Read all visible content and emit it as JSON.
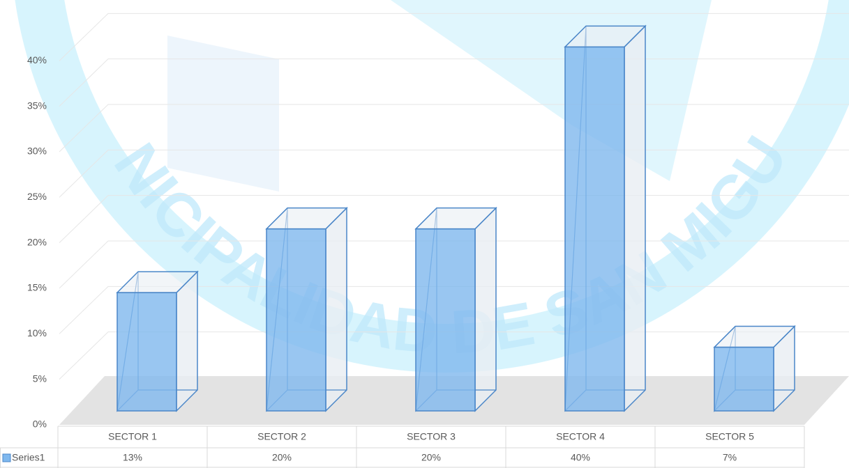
{
  "chart_data": {
    "type": "bar3d",
    "watermark": "MUNICIPALIDAD DE SAN MIGUEL",
    "categories": [
      "SECTOR 1",
      "SECTOR 2",
      "SECTOR 3",
      "SECTOR 4",
      "SECTOR 5"
    ],
    "series": [
      {
        "name": "Series1",
        "color": "#7fb8ee",
        "values": [
          13,
          20,
          20,
          40,
          7
        ],
        "value_labels": [
          "13%",
          "20%",
          "20%",
          "40%",
          "7%"
        ]
      }
    ],
    "ylim": [
      0,
      45
    ],
    "yticks": [
      {
        "value": 0,
        "label": "0%"
      },
      {
        "value": 5,
        "label": "5%"
      },
      {
        "value": 10,
        "label": "10%"
      },
      {
        "value": 15,
        "label": "15%"
      },
      {
        "value": 20,
        "label": "20%"
      },
      {
        "value": 25,
        "label": "25%"
      },
      {
        "value": 30,
        "label": "30%"
      },
      {
        "value": 35,
        "label": "35%"
      },
      {
        "value": 40,
        "label": "40%"
      }
    ],
    "grid": true
  }
}
